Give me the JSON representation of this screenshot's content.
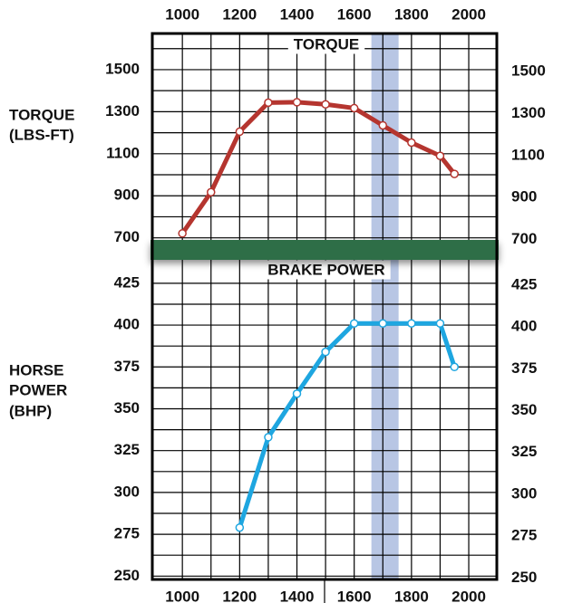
{
  "chart_data": [
    {
      "type": "line",
      "title": "TORQUE",
      "y_label": [
        "TORQUE",
        "(LBS-FT)"
      ],
      "x": [
        1000,
        1100,
        1200,
        1300,
        1400,
        1500,
        1600,
        1700,
        1800,
        1900,
        1950
      ],
      "values": [
        721,
        917,
        1205,
        1343,
        1345,
        1335,
        1317,
        1235,
        1153,
        1090,
        1004
      ],
      "color": "#b5352f",
      "xlim": [
        895,
        2098
      ],
      "xticks": [
        1000,
        1200,
        1400,
        1600,
        1800,
        2000
      ],
      "xminorticks": [
        1100,
        1300,
        1500,
        1700,
        1900
      ],
      "ylim": [
        690,
        1672
      ],
      "yticks": [
        700,
        900,
        1100,
        1300,
        1500
      ],
      "yminorticks": [
        800,
        1000,
        1200,
        1400,
        1600
      ],
      "highlight": [
        1660,
        1755
      ],
      "highlight_color": "#b8c6e4",
      "grid": true
    },
    {
      "type": "line",
      "title": "BRAKE POWER",
      "y_label": [
        "HORSE",
        "POWER",
        "(BHP)"
      ],
      "x": [
        1200,
        1300,
        1400,
        1500,
        1600,
        1700,
        1800,
        1900,
        1950
      ],
      "values": [
        279,
        333,
        359,
        384,
        401,
        401,
        401,
        401,
        375
      ],
      "color": "#1ea6e0",
      "xlim": [
        895,
        2098
      ],
      "xticks": [
        1000,
        1200,
        1400,
        1600,
        1800,
        2000
      ],
      "xminorticks": [
        1100,
        1300,
        1500,
        1700,
        1900
      ],
      "ylim": [
        248,
        439
      ],
      "yticks": [
        250,
        275,
        300,
        325,
        350,
        375,
        400,
        425
      ],
      "yminorticks": [
        262.5,
        287.5,
        312.5,
        337.5,
        362.5,
        387.5,
        412.5
      ],
      "highlight": [
        1660,
        1755
      ],
      "highlight_color": "#b8c6e4",
      "grid": true
    }
  ]
}
